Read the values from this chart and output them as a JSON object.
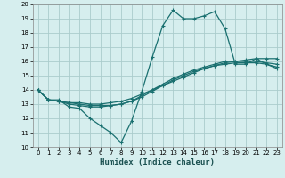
{
  "title": "",
  "xlabel": "Humidex (Indice chaleur)",
  "background_color": "#d6eeee",
  "grid_color": "#aacccc",
  "line_color": "#1a7070",
  "xlim": [
    -0.5,
    23.5
  ],
  "ylim": [
    10,
    20
  ],
  "yticks": [
    10,
    11,
    12,
    13,
    14,
    15,
    16,
    17,
    18,
    19,
    20
  ],
  "xticks": [
    0,
    1,
    2,
    3,
    4,
    5,
    6,
    7,
    8,
    9,
    10,
    11,
    12,
    13,
    14,
    15,
    16,
    17,
    18,
    19,
    20,
    21,
    22,
    23
  ],
  "series": [
    {
      "x": [
        0,
        1,
        2,
        3,
        4,
        5,
        6,
        7,
        8,
        9,
        10,
        11,
        12,
        13,
        14,
        15,
        16,
        17,
        18,
        19,
        20,
        21,
        22,
        23
      ],
      "y": [
        14.0,
        13.3,
        13.3,
        12.8,
        12.7,
        12.0,
        11.5,
        11.0,
        10.3,
        11.8,
        13.9,
        16.3,
        18.5,
        19.6,
        19.0,
        19.0,
        19.2,
        19.5,
        18.3,
        15.8,
        15.8,
        16.2,
        15.8,
        15.5
      ]
    },
    {
      "x": [
        0,
        1,
        2,
        3,
        4,
        5,
        6,
        7,
        8,
        9,
        10,
        11,
        12,
        13,
        14,
        15,
        16,
        17,
        18,
        19,
        20,
        21,
        22,
        23
      ],
      "y": [
        14.0,
        13.3,
        13.2,
        13.1,
        13.1,
        13.0,
        13.0,
        13.1,
        13.2,
        13.4,
        13.7,
        14.0,
        14.3,
        14.6,
        14.9,
        15.2,
        15.5,
        15.7,
        15.9,
        16.0,
        16.1,
        16.2,
        16.2,
        16.2
      ]
    },
    {
      "x": [
        0,
        1,
        2,
        3,
        4,
        5,
        6,
        7,
        8,
        9,
        10,
        11,
        12,
        13,
        14,
        15,
        16,
        17,
        18,
        19,
        20,
        21,
        22,
        23
      ],
      "y": [
        14.0,
        13.3,
        13.2,
        13.0,
        12.9,
        12.8,
        12.8,
        12.9,
        13.0,
        13.2,
        13.6,
        14.0,
        14.4,
        14.8,
        15.1,
        15.4,
        15.6,
        15.8,
        16.0,
        16.0,
        16.0,
        16.0,
        15.9,
        15.8
      ]
    },
    {
      "x": [
        0,
        1,
        2,
        3,
        4,
        5,
        6,
        7,
        8,
        9,
        10,
        11,
        12,
        13,
        14,
        15,
        16,
        17,
        18,
        19,
        20,
        21,
        22,
        23
      ],
      "y": [
        14.0,
        13.3,
        13.2,
        13.1,
        13.0,
        12.9,
        12.9,
        12.9,
        13.0,
        13.2,
        13.5,
        13.9,
        14.3,
        14.7,
        15.0,
        15.3,
        15.5,
        15.7,
        15.8,
        15.9,
        15.9,
        15.9,
        15.8,
        15.6
      ]
    }
  ]
}
